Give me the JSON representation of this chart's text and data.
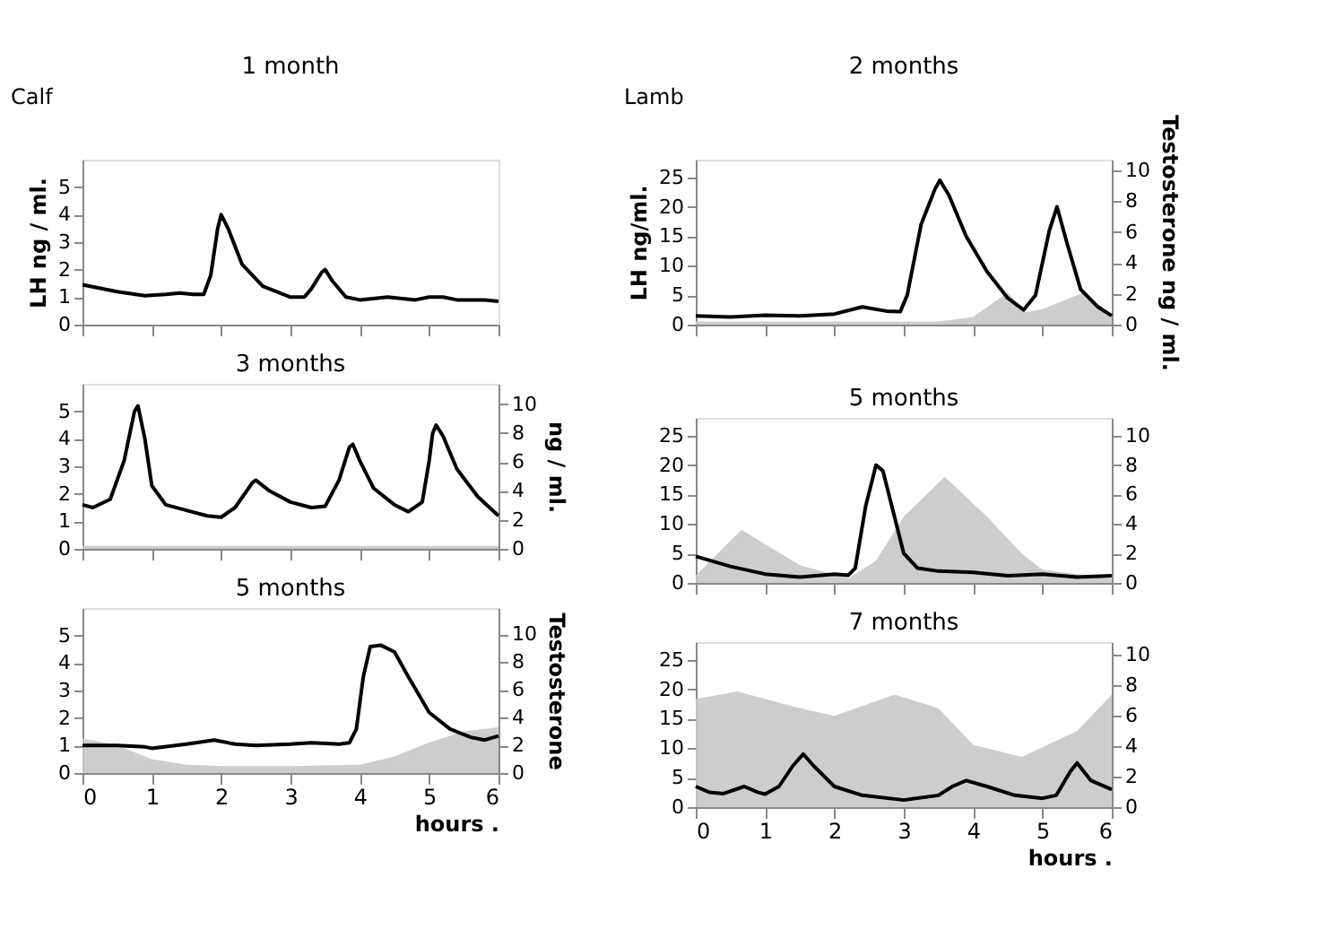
{
  "chart_data": [
    {
      "type": "line",
      "title": "1 month",
      "annotations": [
        "Calf"
      ],
      "ylabel": "LH ng / ml.",
      "xlim": [
        0,
        6
      ],
      "xticks": [
        0,
        1,
        2,
        3,
        4,
        5,
        6
      ],
      "ylim": [
        0,
        6
      ],
      "yticks": [
        0,
        1,
        2,
        3,
        4,
        5
      ],
      "tick_labels": "y",
      "grid": false,
      "series": [
        {
          "color": "#000000",
          "x": [
            0,
            0.5,
            0.9,
            1.2,
            1.4,
            1.6,
            1.75,
            1.85,
            1.95,
            2.0,
            2.1,
            2.3,
            2.6,
            3.0,
            3.2,
            3.3,
            3.45,
            3.5,
            3.6,
            3.8,
            4.0,
            4.4,
            4.8,
            5.0,
            5.2,
            5.4,
            5.8,
            6.0
          ],
          "values": [
            1.45,
            1.2,
            1.05,
            1.1,
            1.15,
            1.1,
            1.1,
            1.8,
            3.5,
            4.0,
            3.5,
            2.2,
            1.4,
            1.0,
            1.0,
            1.3,
            1.9,
            2.0,
            1.6,
            1.0,
            0.9,
            1.0,
            0.9,
            1.0,
            1.0,
            0.9,
            0.9,
            0.85
          ]
        }
      ]
    },
    {
      "type": "line",
      "title": "2 months",
      "annotations": [
        "Lamb"
      ],
      "ylabel": "LH ng/ml.",
      "y2label": "Testosterone ng / ml.",
      "xlim": [
        0,
        6
      ],
      "xticks": [
        0,
        1,
        2,
        3,
        4,
        5,
        6
      ],
      "ylim": [
        0,
        28
      ],
      "yticks": [
        0,
        5,
        10,
        15,
        20,
        25
      ],
      "y2lim": [
        0,
        10.7
      ],
      "y2ticks": [
        0,
        2,
        4,
        6,
        8,
        10
      ],
      "tick_labels": "y",
      "grid": false,
      "series": [
        {
          "type": "area",
          "axis": "y2",
          "color": "#c8c8c8",
          "x": [
            0,
            3.5,
            4.0,
            4.5,
            4.75,
            5.0,
            5.6,
            6.0
          ],
          "values": [
            0.2,
            0.2,
            0.5,
            2.1,
            0.8,
            1.0,
            2.1,
            0.6
          ]
        },
        {
          "color": "#000000",
          "x": [
            0,
            0.5,
            1,
            1.5,
            2,
            2.4,
            2.75,
            2.95,
            3.05,
            3.25,
            3.45,
            3.52,
            3.65,
            3.9,
            4.2,
            4.5,
            4.73,
            4.9,
            5.1,
            5.21,
            5.35,
            5.55,
            5.8,
            6.0
          ],
          "values": [
            1.5,
            1.3,
            1.6,
            1.5,
            1.8,
            3.0,
            2.3,
            2.2,
            5,
            17,
            23,
            24.5,
            22,
            15,
            9,
            4.5,
            2.5,
            5,
            16,
            20,
            14,
            6,
            3,
            1.5
          ]
        }
      ]
    },
    {
      "type": "line",
      "title": "3 months",
      "y2label": "ng / ml.",
      "xlim": [
        0,
        6
      ],
      "xticks": [
        0,
        1,
        2,
        3,
        4,
        5,
        6
      ],
      "ylim": [
        0,
        6
      ],
      "yticks": [
        0,
        1,
        2,
        3,
        4,
        5
      ],
      "y2lim": [
        0,
        11.4
      ],
      "y2ticks": [
        0,
        2,
        4,
        6,
        8,
        10
      ],
      "tick_labels": "y",
      "grid": false,
      "series": [
        {
          "type": "area",
          "axis": "y2",
          "color": "#c8c8c8",
          "x": [
            0,
            6
          ],
          "values": [
            0.2,
            0.2
          ]
        },
        {
          "color": "#000000",
          "x": [
            0,
            0.15,
            0.4,
            0.6,
            0.75,
            0.8,
            0.9,
            1.0,
            1.2,
            1.5,
            1.8,
            2.0,
            2.2,
            2.45,
            2.5,
            2.7,
            3.0,
            3.3,
            3.5,
            3.7,
            3.85,
            3.9,
            4.0,
            4.2,
            4.5,
            4.7,
            4.9,
            5.0,
            5.05,
            5.1,
            5.2,
            5.4,
            5.7,
            6.0
          ],
          "values": [
            1.6,
            1.5,
            1.8,
            3.2,
            5.0,
            5.2,
            4.0,
            2.3,
            1.6,
            1.4,
            1.2,
            1.15,
            1.5,
            2.4,
            2.5,
            2.1,
            1.7,
            1.5,
            1.55,
            2.5,
            3.7,
            3.8,
            3.2,
            2.2,
            1.6,
            1.35,
            1.7,
            3.2,
            4.2,
            4.5,
            4.1,
            2.9,
            1.9,
            1.2
          ]
        }
      ]
    },
    {
      "type": "line",
      "title": "5 months",
      "xlim": [
        0,
        6
      ],
      "xticks": [
        0,
        1,
        2,
        3,
        4,
        5,
        6
      ],
      "ylim": [
        0,
        28
      ],
      "yticks": [
        0,
        5,
        10,
        15,
        20,
        25
      ],
      "y2lim": [
        0,
        11.2
      ],
      "y2ticks": [
        0,
        2,
        4,
        6,
        8,
        10
      ],
      "tick_labels": "y",
      "grid": false,
      "series": [
        {
          "type": "area",
          "axis": "y2",
          "color": "#c8c8c8",
          "x": [
            0,
            0.66,
            1.5,
            2.2,
            2.6,
            3.0,
            3.59,
            4.2,
            4.7,
            5.0,
            6.0
          ],
          "values": [
            0.5,
            3.6,
            1.2,
            0.3,
            1.5,
            4.5,
            7.2,
            4.5,
            2.0,
            0.9,
            0.3
          ]
        },
        {
          "color": "#000000",
          "x": [
            0,
            0.5,
            1,
            1.5,
            2,
            2.2,
            2.3,
            2.45,
            2.6,
            2.7,
            2.85,
            3.0,
            3.2,
            3.5,
            4.0,
            4.5,
            5,
            5.5,
            6
          ],
          "values": [
            4.5,
            2.8,
            1.5,
            1.0,
            1.5,
            1.3,
            2.5,
            13,
            20,
            19,
            12,
            5,
            2.5,
            2.0,
            1.8,
            1.2,
            1.5,
            1.0,
            1.2
          ]
        }
      ]
    },
    {
      "type": "line",
      "title": "5 months",
      "y2label": "Testosterone",
      "xlabel": "hours .",
      "xlim": [
        0,
        6
      ],
      "xticks": [
        0,
        1,
        2,
        3,
        4,
        5,
        6
      ],
      "ylim": [
        0,
        6
      ],
      "yticks": [
        0,
        1,
        2,
        3,
        4,
        5
      ],
      "y2lim": [
        0,
        11.9
      ],
      "y2ticks": [
        0,
        2,
        4,
        6,
        8,
        10
      ],
      "grid": false,
      "series": [
        {
          "type": "area",
          "axis": "y2",
          "color": "#c8c8c8",
          "x": [
            0,
            0.5,
            1,
            1.5,
            2,
            3,
            4,
            4.5,
            5,
            5.5,
            6
          ],
          "values": [
            2.5,
            2.0,
            1.0,
            0.6,
            0.5,
            0.5,
            0.6,
            1.2,
            2.2,
            3.0,
            3.3
          ]
        },
        {
          "color": "#000000",
          "x": [
            0,
            0.5,
            0.9,
            1.0,
            1.5,
            1.9,
            2.2,
            2.5,
            3.0,
            3.3,
            3.7,
            3.85,
            3.95,
            4.05,
            4.15,
            4.3,
            4.5,
            4.7,
            5.0,
            5.3,
            5.6,
            5.8,
            6.0
          ],
          "values": [
            1.0,
            1.0,
            0.95,
            0.9,
            1.05,
            1.2,
            1.05,
            1.0,
            1.05,
            1.1,
            1.05,
            1.1,
            1.6,
            3.5,
            4.6,
            4.65,
            4.4,
            3.5,
            2.2,
            1.6,
            1.3,
            1.2,
            1.35
          ]
        }
      ]
    },
    {
      "type": "line",
      "title": "7 months",
      "xlabel": "hours .",
      "xlim": [
        0,
        6
      ],
      "xticks": [
        0,
        1,
        2,
        3,
        4,
        5,
        6
      ],
      "ylim": [
        0,
        28
      ],
      "yticks": [
        0,
        5,
        10,
        15,
        20,
        25
      ],
      "y2lim": [
        0,
        10.85
      ],
      "y2ticks": [
        0,
        2,
        4,
        6,
        8,
        10
      ],
      "grid": false,
      "series": [
        {
          "type": "area",
          "axis": "y2",
          "color": "#c8c8c8",
          "x": [
            0,
            0.6,
            1.5,
            2.0,
            2.87,
            3.5,
            4.0,
            4.7,
            5.5,
            6.0
          ],
          "values": [
            7.1,
            7.6,
            6.5,
            6.0,
            7.4,
            6.5,
            4.1,
            3.3,
            5.0,
            7.4
          ]
        },
        {
          "color": "#000000",
          "x": [
            0,
            0.2,
            0.4,
            0.7,
            0.9,
            1.0,
            1.2,
            1.4,
            1.55,
            1.7,
            2.0,
            2.4,
            3,
            3.5,
            3.7,
            3.9,
            4.2,
            4.6,
            5,
            5.2,
            5.4,
            5.5,
            5.7,
            6
          ],
          "values": [
            3.5,
            2.5,
            2.3,
            3.5,
            2.5,
            2.2,
            3.5,
            7,
            9,
            7,
            3.5,
            2.0,
            1.2,
            2,
            3.5,
            4.5,
            3.5,
            2,
            1.5,
            2,
            6,
            7.5,
            4.5,
            3
          ]
        }
      ]
    }
  ]
}
